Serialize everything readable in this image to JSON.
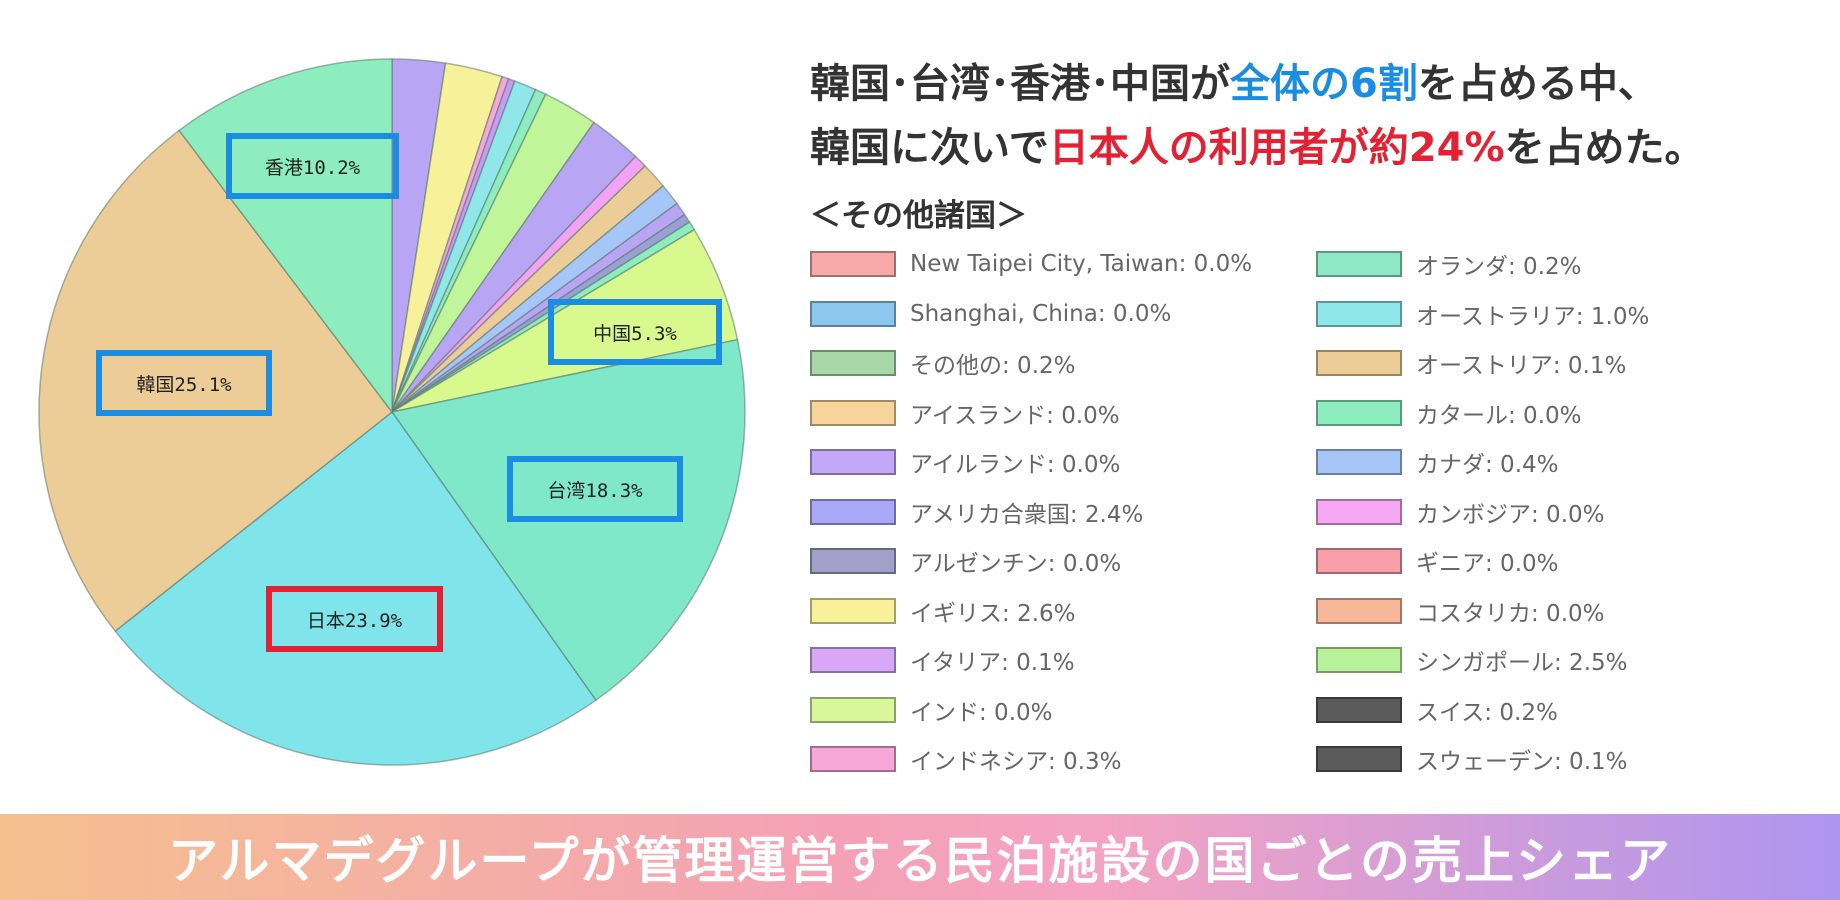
{
  "chart_data": {
    "type": "pie",
    "slices": [
      {
        "label": "韓国25.1%",
        "name": "韓国",
        "value": 25.1,
        "color": "#edcd97"
      },
      {
        "label": "日本23.9%",
        "name": "日本",
        "value": 23.9,
        "color": "#7fe5ea"
      },
      {
        "label": "台湾18.3%",
        "name": "台湾",
        "value": 18.3,
        "color": "#7fe8c8"
      },
      {
        "label": "中国5.3%",
        "name": "中国",
        "value": 5.3,
        "color": "#d8f98e"
      },
      {
        "label": "香港10.2%",
        "name": "香港",
        "value": 10.2,
        "color": "#8eedbe"
      }
    ],
    "label_box_colors": {
      "default": "#1a8de2",
      "highlight": "#e32132"
    },
    "other_slices": [
      {
        "value": 2.4,
        "color": "#b8a6f5"
      },
      {
        "value": 2.6,
        "color": "#f7f29a"
      },
      {
        "value": 0.3,
        "color": "#f7a8d8"
      },
      {
        "value": 0.3,
        "color": "#c99af7"
      },
      {
        "value": 1.0,
        "color": "#8fe7ea"
      },
      {
        "value": 0.5,
        "color": "#8eedbe"
      },
      {
        "value": 2.5,
        "color": "#c0f59a"
      },
      {
        "value": 2.4,
        "color": "#b8a6f5"
      },
      {
        "value": 0.6,
        "color": "#f2a3f3"
      },
      {
        "value": 1.2,
        "color": "#edcd97"
      },
      {
        "value": 1.0,
        "color": "#a6c6f7"
      },
      {
        "value": 0.6,
        "color": "#b8a6f5"
      },
      {
        "value": 0.4,
        "color": "#9aa0d6"
      },
      {
        "value": 0.4,
        "color": "#8eedbe"
      }
    ]
  },
  "headline": {
    "line1_part1": "韓国･台湾･香港･中国が",
    "line1_highlight": "全体の6割",
    "line1_part2": "を占める中、",
    "line2_part1": "韓国に次いで",
    "line2_highlight": "日本人の利用者が約24%",
    "line2_part2": "を占めた。"
  },
  "legend": {
    "title": "＜その他諸国＞",
    "left": [
      {
        "text": "New Taipei City, Taiwan: 0.0%",
        "color": "#f7a8a8"
      },
      {
        "text": "Shanghai, China: 0.0%",
        "color": "#8cc7ef"
      },
      {
        "text": "その他の: 0.2%",
        "color": "#a8d8a8"
      },
      {
        "text": "アイスランド: 0.0%",
        "color": "#f7d49a"
      },
      {
        "text": "アイルランド: 0.0%",
        "color": "#c3a8f7"
      },
      {
        "text": "アメリカ合衆国: 2.4%",
        "color": "#a8a8f7"
      },
      {
        "text": "アルゼンチン: 0.0%",
        "color": "#a0a0c8"
      },
      {
        "text": "イギリス: 2.6%",
        "color": "#f7f29a"
      },
      {
        "text": "イタリア: 0.1%",
        "color": "#d8a8f7"
      },
      {
        "text": "インド: 0.0%",
        "color": "#d8f79a"
      },
      {
        "text": "インドネシア: 0.3%",
        "color": "#f7a8d8"
      }
    ],
    "right": [
      {
        "text": "オランダ: 0.2%",
        "color": "#8ee8c8"
      },
      {
        "text": "オーストラリア: 1.0%",
        "color": "#8fe7ea"
      },
      {
        "text": "オーストリア: 0.1%",
        "color": "#edcd97"
      },
      {
        "text": "カタール: 0.0%",
        "color": "#8eedbe"
      },
      {
        "text": "カナダ: 0.4%",
        "color": "#a6c6f7"
      },
      {
        "text": "カンボジア: 0.0%",
        "color": "#f7a8f2"
      },
      {
        "text": "ギニア: 0.0%",
        "color": "#f7a0a8"
      },
      {
        "text": "コスタリカ: 0.0%",
        "color": "#f7b89a"
      },
      {
        "text": "シンガポール: 2.5%",
        "color": "#b8f29a"
      },
      {
        "text": "スイス: 0.2%",
        "color": "#5a5a5a"
      },
      {
        "text": "スウェーデン: 0.1%",
        "color": "#5a5a5a"
      }
    ]
  },
  "banner": {
    "text": "アルマデグループが管理運営する民泊施設の国ごとの売上シェア"
  }
}
